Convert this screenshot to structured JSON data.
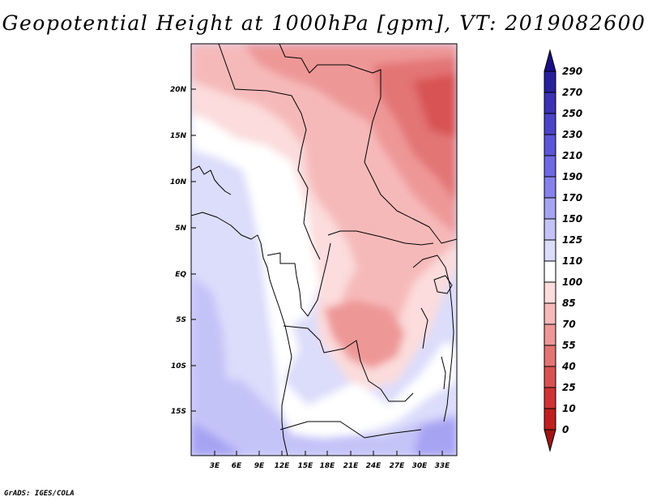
{
  "title": "Geopotential Height at 1000hPa [gpm], VT: 2019082600",
  "credit": "GrADS: IGES/COLA",
  "map": {
    "lat_labels": [
      "20N",
      "15N",
      "10N",
      "5N",
      "EQ",
      "5S",
      "10S",
      "15S"
    ],
    "lon_labels": [
      "3E",
      "6E",
      "9E",
      "12E",
      "15E",
      "18E",
      "21E",
      "24E",
      "27E",
      "30E",
      "33E"
    ]
  },
  "colorbar": {
    "levels": [
      "290",
      "270",
      "250",
      "230",
      "210",
      "190",
      "170",
      "150",
      "125",
      "110",
      "100",
      "85",
      "70",
      "55",
      "40",
      "25",
      "10",
      "0"
    ],
    "colors": [
      "#1a0f85",
      "#27209c",
      "#3a31b4",
      "#4b43c8",
      "#5b55d8",
      "#6e68e3",
      "#8680ec",
      "#a6a3f3",
      "#c4c3f8",
      "#dcdcfb",
      "#ffffff",
      "#fcdcdc",
      "#f6b9b9",
      "#ee9797",
      "#e37474",
      "#d85252",
      "#cf3434",
      "#c01f1f",
      "#9f1414"
    ]
  }
}
